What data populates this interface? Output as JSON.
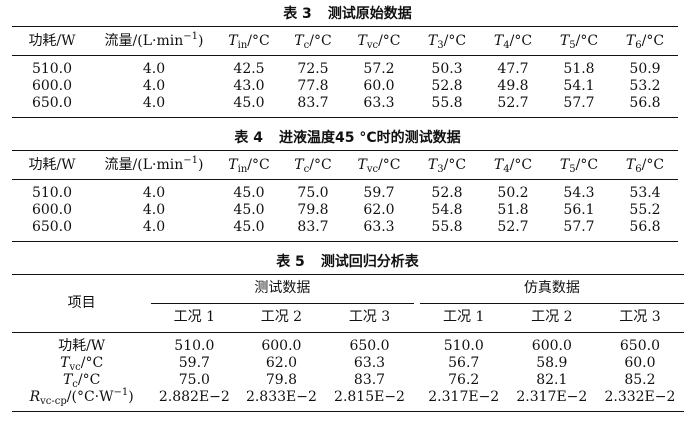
{
  "table3": {
    "caption_num": "表 3",
    "caption_text": "测试原始数据",
    "headers": {
      "power": "功耗/W",
      "flow": "流量/(L·min",
      "flow_sup": "−1",
      "flow_close": ")",
      "tin_sym": "T",
      "tin_sub": "in",
      "tc_sym": "T",
      "tc_sub": "c",
      "tvc_sym": "T",
      "tvc_sub": "vc",
      "t3_sym": "T",
      "t3_sub": "3",
      "t4_sym": "T",
      "t4_sub": "4",
      "t5_sym": "T",
      "t5_sub": "5",
      "t6_sym": "T",
      "t6_sub": "6",
      "unit": "/°C"
    },
    "rows": [
      [
        "510.0",
        "4.0",
        "42.5",
        "72.5",
        "57.2",
        "50.3",
        "47.7",
        "51.8",
        "50.9"
      ],
      [
        "600.0",
        "4.0",
        "43.0",
        "77.8",
        "60.0",
        "52.8",
        "49.8",
        "54.1",
        "53.2"
      ],
      [
        "650.0",
        "4.0",
        "45.0",
        "83.7",
        "63.3",
        "55.8",
        "52.7",
        "57.7",
        "56.8"
      ]
    ]
  },
  "table4": {
    "caption_num": "表 4",
    "caption_text": "进液温度45 °C时的测试数据",
    "rows": [
      [
        "510.0",
        "4.0",
        "45.0",
        "75.0",
        "59.7",
        "52.8",
        "50.2",
        "54.3",
        "53.4"
      ],
      [
        "600.0",
        "4.0",
        "45.0",
        "79.8",
        "62.0",
        "54.8",
        "51.8",
        "56.1",
        "55.2"
      ],
      [
        "650.0",
        "4.0",
        "45.0",
        "83.7",
        "63.3",
        "55.8",
        "52.7",
        "57.7",
        "56.8"
      ]
    ]
  },
  "table5": {
    "caption_num": "表 5",
    "caption_text": "测试回归分析表",
    "item_header": "项目",
    "group_test": "测试数据",
    "group_sim": "仿真数据",
    "conditions": [
      "工况 1",
      "工况 2",
      "工况 3",
      "工况 1",
      "工况 2",
      "工况 3"
    ],
    "row_labels": {
      "power": "功耗/W",
      "tvc_sym": "T",
      "tvc_sub": "vc",
      "tc_sym": "T",
      "tc_sub": "c",
      "unit": "/°C",
      "r_sym": "R",
      "r_sub": "vc-cp",
      "r_unit": "/(°C·W",
      "r_sup": "−1",
      "r_close": ")"
    },
    "rows": {
      "power": [
        "510.0",
        "600.0",
        "650.0",
        "510.0",
        "600.0",
        "650.0"
      ],
      "tvc": [
        "59.7",
        "62.0",
        "63.3",
        "56.7",
        "58.9",
        "60.0"
      ],
      "tc": [
        "75.0",
        "79.8",
        "83.7",
        "76.2",
        "82.1",
        "85.2"
      ],
      "r": [
        "2.882E−2",
        "2.833E−2",
        "2.815E−2",
        "2.317E−2",
        "2.317E−2",
        "2.332E−2"
      ]
    }
  }
}
